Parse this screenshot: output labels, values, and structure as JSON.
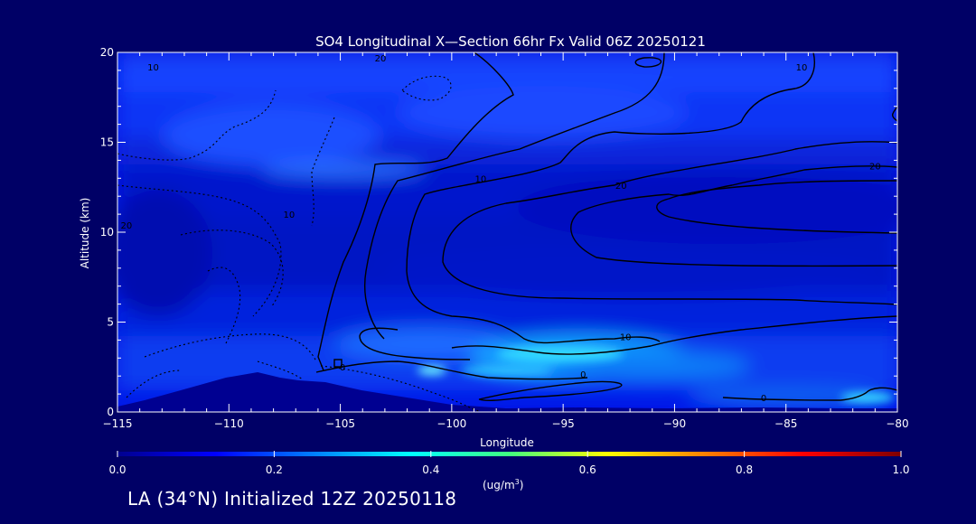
{
  "chart_data": {
    "type": "heatmap",
    "title": "SO4 Longitudinal X—Section 66hr  Fx Valid 06Z 20250121",
    "xlabel": "Longitude",
    "ylabel": "Altitude (km)",
    "xlim": [
      -115,
      -80
    ],
    "ylim": [
      0,
      20
    ],
    "x_ticks": [
      -115,
      -110,
      -105,
      -100,
      -95,
      -90,
      -85,
      -80
    ],
    "x_tick_labels": [
      "−115",
      "−110",
      "−105",
      "−100",
      "−95",
      "−90",
      "−85",
      "−80"
    ],
    "y_ticks": [
      0,
      5,
      10,
      15,
      20
    ],
    "y_tick_labels": [
      "0",
      "5",
      "10",
      "15",
      "20"
    ],
    "grid": false,
    "colorbar": {
      "label": "(ug/m³)",
      "range": [
        0.0,
        1.0
      ],
      "ticks": [
        0.0,
        0.2,
        0.4,
        0.6,
        0.8,
        1.0
      ],
      "tick_labels": [
        "0.0",
        "0.2",
        "0.4",
        "0.6",
        "0.8",
        "1.0"
      ],
      "colormap": "jet"
    },
    "contour_labels": [
      {
        "text": "10",
        "lon": -113.4,
        "alt": 19.0
      },
      {
        "text": "20",
        "lon": -103.2,
        "alt": 19.5
      },
      {
        "text": "10",
        "lon": -84.3,
        "alt": 19.0
      },
      {
        "text": "20",
        "lon": -114.6,
        "alt": 10.2
      },
      {
        "text": "10",
        "lon": -107.3,
        "alt": 10.8
      },
      {
        "text": "10",
        "lon": -98.7,
        "alt": 12.8
      },
      {
        "text": "20",
        "lon": -92.4,
        "alt": 12.4
      },
      {
        "text": "20",
        "lon": -81.0,
        "alt": 13.5
      },
      {
        "text": "10",
        "lon": -92.2,
        "alt": 4.0
      },
      {
        "text": "0",
        "lon": -104.9,
        "alt": 2.3
      },
      {
        "text": "0",
        "lon": -94.1,
        "alt": 1.9
      },
      {
        "text": "0",
        "lon": -86.0,
        "alt": 0.6
      }
    ],
    "annotations": [
      "LA (34°N) Initialized 12Z 20250118"
    ]
  },
  "colors": {
    "background": "#000066",
    "terrain": "#000091",
    "field_low": "#0000cc",
    "field_mid": "#0b4cff",
    "field_high": "#2ed8ff",
    "contour": "#000000",
    "text": "#ffffff"
  },
  "footer": {
    "text": "LA (34°N) Initialized 12Z 20250118"
  }
}
